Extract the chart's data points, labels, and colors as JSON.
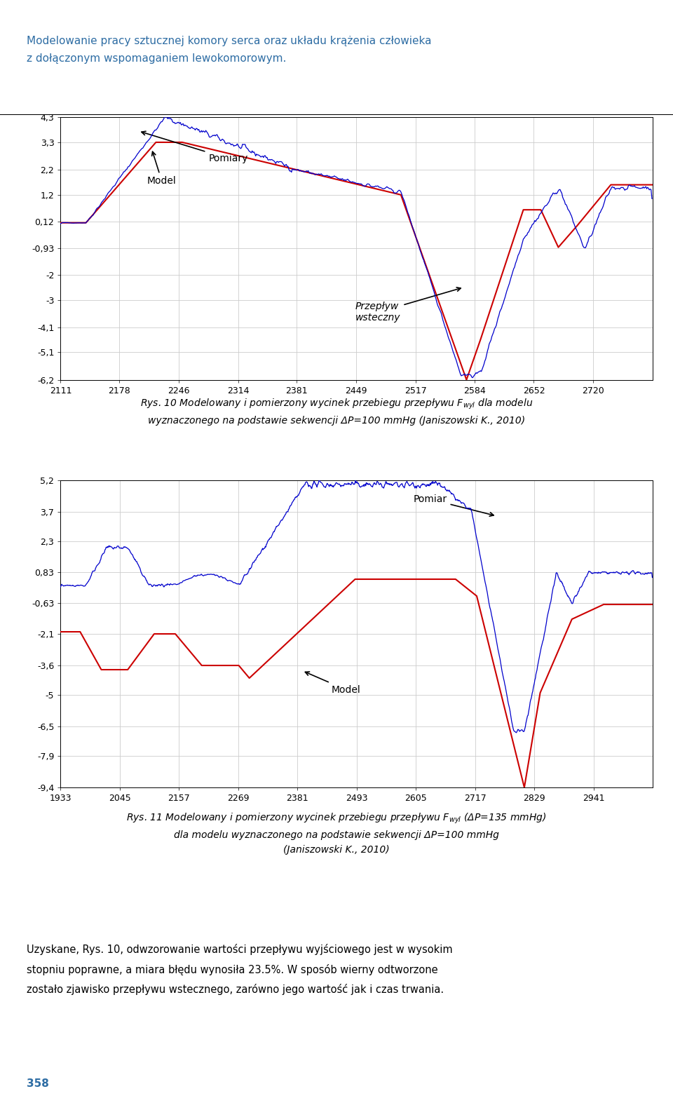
{
  "header_line1": "Modelowanie pracy sztucznej komory serca oraz układu krążenia człowieka",
  "header_line2": "z dołączonym wspomaganiem lewokomorowym.",
  "header_color": "#2E6DA4",
  "chart1": {
    "yticks": [
      4.3,
      3.3,
      2.2,
      1.2,
      0.12,
      -0.93,
      -2,
      -3,
      -4.1,
      -5.1,
      -6.2
    ],
    "ytick_labels": [
      "4,3",
      "3,3",
      "2,2",
      "1,2",
      "0,12",
      "-0,93",
      "-2",
      "-3",
      "-4,1",
      "-5,1",
      "-6,2"
    ],
    "xticks": [
      2111,
      2178,
      2246,
      2314,
      2381,
      2449,
      2517,
      2584,
      2652,
      2720
    ],
    "xlim": [
      2111,
      2788
    ],
    "ylim": [
      -6.2,
      4.3
    ]
  },
  "chart2": {
    "yticks": [
      5.2,
      3.7,
      2.3,
      0.83,
      -0.63,
      -2.1,
      -3.6,
      -5,
      -6.5,
      -7.9,
      -9.4
    ],
    "ytick_labels": [
      "5,2",
      "3,7",
      "2,3",
      "0,83",
      "-0,63",
      "-2,1",
      "-3,6",
      "-5",
      "-6,5",
      "-7,9",
      "-9,4"
    ],
    "xticks": [
      1933,
      2045,
      2157,
      2269,
      2381,
      2493,
      2605,
      2717,
      2829,
      2941
    ],
    "xlim": [
      1933,
      3053
    ],
    "ylim": [
      -9.4,
      5.2
    ]
  },
  "footer_text": "Uzyskane, Rys. 10, odwzorowanie wartości przepływu wyjściowego jest w wysokim stopniu poprawne, a miara błędu wynosiła 23.5%. W sposób wierny odtworzone zostało zjawisko przepływu wstecznego, zarówno jego wartość jak i czas trwania.",
  "page_number": "358",
  "page_number_color": "#2E6DA4",
  "blue_color": "#0000CC",
  "red_color": "#CC0000",
  "grid_color": "#CCCCCC",
  "bg_color": "#FFFFFF"
}
